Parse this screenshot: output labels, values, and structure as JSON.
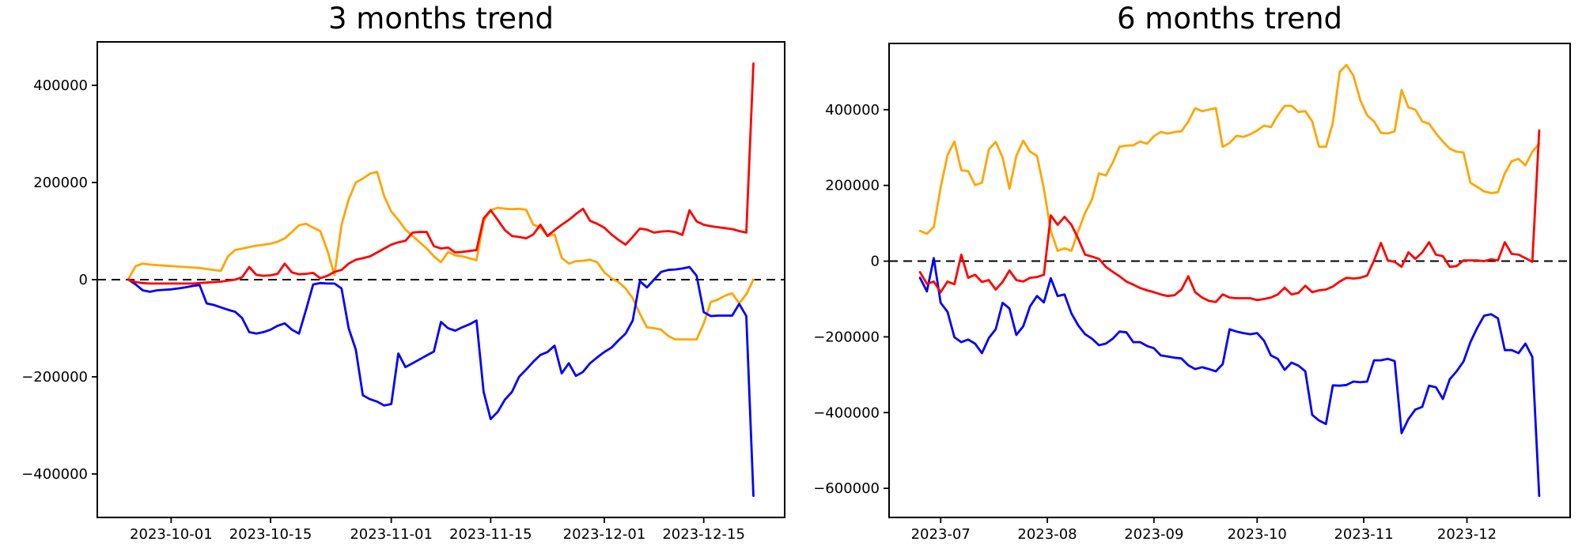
{
  "page": {
    "background": "#ffffff",
    "text_color": "#000000"
  },
  "chart_data": [
    {
      "type": "line",
      "title": "3 months trend",
      "grid": false,
      "legend": null,
      "start_date": "2023-09-25",
      "step_days": 1,
      "x_ticks": [
        {
          "date": "2023-10-01",
          "label": "2023-10-01"
        },
        {
          "date": "2023-10-15",
          "label": "2023-10-15"
        },
        {
          "date": "2023-11-01",
          "label": "2023-11-01"
        },
        {
          "date": "2023-11-15",
          "label": "2023-11-15"
        },
        {
          "date": "2023-12-01",
          "label": "2023-12-01"
        },
        {
          "date": "2023-12-15",
          "label": "2023-12-15"
        }
      ],
      "y_ticks": [
        {
          "value": -400000,
          "label": "−400000"
        },
        {
          "value": -200000,
          "label": "−200000"
        },
        {
          "value": 0,
          "label": "0"
        },
        {
          "value": 200000,
          "label": "200000"
        },
        {
          "value": 400000,
          "label": "400000"
        }
      ],
      "zero_line": {
        "style": "dashed",
        "color": "#000000",
        "y": 0
      },
      "series": [
        {
          "name": "orange-series",
          "color": "#ffa500",
          "values": [
            2000,
            28000,
            33000,
            31000,
            30000,
            29000,
            28000,
            27000,
            26000,
            25000,
            24000,
            22000,
            20000,
            18000,
            48000,
            61000,
            64000,
            67000,
            70000,
            72000,
            74000,
            78000,
            85000,
            98000,
            112000,
            115000,
            107000,
            100000,
            60000,
            10000,
            113000,
            165000,
            200000,
            208000,
            218000,
            222000,
            172000,
            140000,
            123000,
            103000,
            90000,
            77000,
            64000,
            48000,
            36000,
            57000,
            50000,
            48000,
            44000,
            40000,
            120000,
            143000,
            148000,
            146000,
            145000,
            146000,
            144000,
            113000,
            108000,
            90000,
            93000,
            45000,
            33000,
            38000,
            39000,
            41000,
            36000,
            15000,
            3000,
            -5000,
            -18000,
            -38000,
            -70000,
            -98000,
            -100000,
            -103000,
            -116000,
            -123000,
            -123000,
            -123000,
            -123000,
            -90000,
            -46000,
            -41000,
            -33000,
            -28000,
            -49000,
            -30000,
            0
          ]
        },
        {
          "name": "blue-series",
          "color": "#0000ff",
          "values": [
            0,
            -10000,
            -22000,
            -25000,
            -22000,
            -21000,
            -20000,
            -18000,
            -16000,
            -13000,
            -11000,
            -49000,
            -52000,
            -57000,
            -62000,
            -66000,
            -79000,
            -108000,
            -111000,
            -108000,
            -103000,
            -95000,
            -90000,
            -103000,
            -111000,
            -62000,
            -10000,
            -7000,
            -8000,
            -8000,
            -18000,
            -100000,
            -144000,
            -238000,
            -246000,
            -251000,
            -259000,
            -256000,
            -152000,
            -180000,
            -172000,
            -164000,
            -156000,
            -148000,
            -87000,
            -100000,
            -105000,
            -98000,
            -92000,
            -84000,
            -231000,
            -287000,
            -272000,
            -247000,
            -231000,
            -200000,
            -185000,
            -169000,
            -155000,
            -149000,
            -136000,
            -193000,
            -172000,
            -198000,
            -190000,
            -172000,
            -160000,
            -149000,
            -140000,
            -125000,
            -111000,
            -84000,
            -3000,
            -16000,
            0,
            16000,
            20000,
            21000,
            23000,
            26000,
            8000,
            -67000,
            -75000,
            -74000,
            -74000,
            -74000,
            -50000,
            -75000,
            -445000
          ]
        },
        {
          "name": "red-series",
          "color": "#ff0000",
          "values": [
            0,
            -5000,
            -7000,
            -8000,
            -8000,
            -8000,
            -8000,
            -8000,
            -8000,
            -8000,
            -7000,
            -6000,
            -5000,
            -4000,
            -2000,
            0,
            5000,
            26000,
            10000,
            8000,
            9000,
            12000,
            33000,
            15000,
            11000,
            12000,
            14000,
            3000,
            8000,
            16000,
            20000,
            33000,
            41000,
            44000,
            48000,
            56000,
            64000,
            72000,
            77000,
            80000,
            97000,
            98000,
            98000,
            69000,
            64000,
            66000,
            56000,
            57000,
            59000,
            61000,
            126000,
            143000,
            123000,
            102000,
            90000,
            88000,
            85000,
            93000,
            113000,
            90000,
            102000,
            113000,
            123000,
            135000,
            146000,
            121000,
            115000,
            107000,
            93000,
            82000,
            72000,
            88000,
            105000,
            103000,
            97000,
            99000,
            100000,
            98000,
            92000,
            143000,
            120000,
            113000,
            110000,
            108000,
            106000,
            104000,
            100000,
            97000,
            445000
          ]
        }
      ]
    },
    {
      "type": "line",
      "title": "6 months trend",
      "grid": false,
      "legend": null,
      "start_date": "2023-06-25",
      "step_days": 2,
      "x_ticks": [
        {
          "date": "2023-07-01",
          "label": "2023-07"
        },
        {
          "date": "2023-08-01",
          "label": "2023-08"
        },
        {
          "date": "2023-09-01",
          "label": "2023-09"
        },
        {
          "date": "2023-10-01",
          "label": "2023-10"
        },
        {
          "date": "2023-11-01",
          "label": "2023-11"
        },
        {
          "date": "2023-12-01",
          "label": "2023-12"
        }
      ],
      "y_ticks": [
        {
          "value": -600000,
          "label": "−600000"
        },
        {
          "value": -400000,
          "label": "−400000"
        },
        {
          "value": -200000,
          "label": "−200000"
        },
        {
          "value": 0,
          "label": "0"
        },
        {
          "value": 200000,
          "label": "200000"
        },
        {
          "value": 400000,
          "label": "400000"
        }
      ],
      "zero_line": {
        "style": "dashed",
        "color": "#000000",
        "y": 0
      },
      "series": [
        {
          "name": "orange-series",
          "color": "#ffa500",
          "values": [
            80000,
            72000,
            90000,
            195000,
            280000,
            316000,
            240000,
            238000,
            201000,
            207000,
            295000,
            315000,
            274000,
            191000,
            278000,
            318000,
            289000,
            278000,
            191000,
            80000,
            27000,
            34000,
            27000,
            80000,
            128000,
            163000,
            232000,
            226000,
            260000,
            302000,
            305000,
            306000,
            316000,
            310000,
            330000,
            341000,
            337000,
            341000,
            343000,
            369000,
            404000,
            396000,
            400000,
            404000,
            302000,
            312000,
            331000,
            328000,
            335000,
            345000,
            358000,
            354000,
            385000,
            410000,
            410000,
            394000,
            396000,
            369000,
            302000,
            302000,
            365000,
            500000,
            518000,
            490000,
            425000,
            385000,
            369000,
            339000,
            337000,
            343000,
            452000,
            406000,
            400000,
            369000,
            363000,
            337000,
            316000,
            297000,
            289000,
            287000,
            207000,
            196000,
            184000,
            180000,
            182000,
            232000,
            264000,
            270000,
            253000,
            289000,
            310000
          ]
        },
        {
          "name": "blue-series",
          "color": "#0000ff",
          "values": [
            -44000,
            -80000,
            8000,
            -110000,
            -134000,
            -201000,
            -214000,
            -207000,
            -218000,
            -243000,
            -203000,
            -180000,
            -110000,
            -125000,
            -195000,
            -172000,
            -119000,
            -92000,
            -109000,
            -45000,
            -92000,
            -88000,
            -138000,
            -170000,
            -193000,
            -205000,
            -222000,
            -218000,
            -205000,
            -186000,
            -188000,
            -214000,
            -214000,
            -224000,
            -230000,
            -249000,
            -252000,
            -255000,
            -257000,
            -275000,
            -285000,
            -280000,
            -285000,
            -291000,
            -272000,
            -180000,
            -186000,
            -190000,
            -193000,
            -190000,
            -210000,
            -249000,
            -258000,
            -287000,
            -268000,
            -276000,
            -291000,
            -406000,
            -421000,
            -430000,
            -328000,
            -329000,
            -327000,
            -318000,
            -320000,
            -318000,
            -262000,
            -262000,
            -258000,
            -264000,
            -454000,
            -417000,
            -392000,
            -385000,
            -329000,
            -333000,
            -364000,
            -312000,
            -291000,
            -265000,
            -214000,
            -176000,
            -144000,
            -140000,
            -151000,
            -235000,
            -235000,
            -243000,
            -218000,
            -253000,
            -620000
          ]
        },
        {
          "name": "red-series",
          "color": "#ff0000",
          "values": [
            -29000,
            -60000,
            -54000,
            -82000,
            -54000,
            -61000,
            17000,
            -44000,
            -36000,
            -55000,
            -50000,
            -75000,
            -55000,
            -25000,
            -50000,
            -54000,
            -44000,
            -42000,
            -36000,
            121000,
            96000,
            117000,
            96000,
            59000,
            17000,
            12000,
            6000,
            -15000,
            -28000,
            -40000,
            -54000,
            -62000,
            -71000,
            -77000,
            -82000,
            -88000,
            -92000,
            -90000,
            -75000,
            -40000,
            -82000,
            -96000,
            -105000,
            -108000,
            -88000,
            -96000,
            -98000,
            -98000,
            -98000,
            -103000,
            -100000,
            -96000,
            -88000,
            -70000,
            -88000,
            -84000,
            -65000,
            -82000,
            -77000,
            -75000,
            -67000,
            -54000,
            -44000,
            -46000,
            -44000,
            -38000,
            2000,
            48000,
            2000,
            -2000,
            -15000,
            23000,
            6000,
            23000,
            50000,
            17000,
            13000,
            -15000,
            -13000,
            2000,
            2000,
            2000,
            0,
            5000,
            2000,
            50000,
            19000,
            17000,
            8000,
            -2000,
            345000
          ]
        }
      ]
    }
  ]
}
